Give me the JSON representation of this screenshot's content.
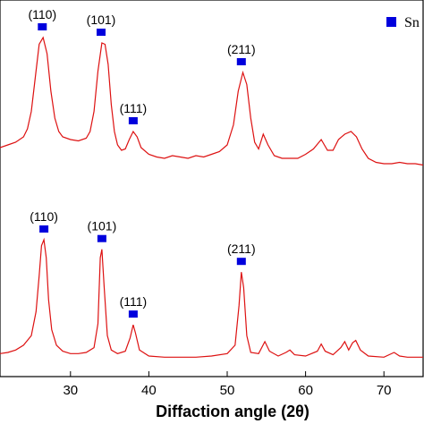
{
  "chart_data": {
    "type": "line",
    "xlabel": "Diffaction angle (2θ)",
    "ylabel": "",
    "xlim": [
      21,
      75
    ],
    "x_ticks": [
      30,
      40,
      50,
      60,
      70
    ],
    "legend": {
      "label": "Sn",
      "marker_color": "#0000dd",
      "placement": "top-right"
    },
    "line_color": "#dd1111",
    "grid": false,
    "series": [
      {
        "points": [
          [
            21,
            0.18
          ],
          [
            22,
            0.2
          ],
          [
            23,
            0.22
          ],
          [
            24,
            0.26
          ],
          [
            24.5,
            0.32
          ],
          [
            25,
            0.45
          ],
          [
            25.5,
            0.7
          ],
          [
            26,
            0.95
          ],
          [
            26.5,
            1
          ],
          [
            27,
            0.88
          ],
          [
            27.5,
            0.6
          ],
          [
            28,
            0.4
          ],
          [
            28.5,
            0.3
          ],
          [
            29,
            0.26
          ],
          [
            30,
            0.24
          ],
          [
            31,
            0.23
          ],
          [
            32,
            0.25
          ],
          [
            32.5,
            0.3
          ],
          [
            33,
            0.45
          ],
          [
            33.5,
            0.75
          ],
          [
            34,
            0.96
          ],
          [
            34.4,
            0.95
          ],
          [
            34.8,
            0.8
          ],
          [
            35.2,
            0.5
          ],
          [
            35.6,
            0.3
          ],
          [
            36,
            0.2
          ],
          [
            36.5,
            0.16
          ],
          [
            37,
            0.17
          ],
          [
            37.5,
            0.24
          ],
          [
            38,
            0.3
          ],
          [
            38.5,
            0.26
          ],
          [
            39,
            0.18
          ],
          [
            40,
            0.13
          ],
          [
            41,
            0.11
          ],
          [
            42,
            0.1
          ],
          [
            43,
            0.12
          ],
          [
            44,
            0.11
          ],
          [
            45,
            0.1
          ],
          [
            46,
            0.12
          ],
          [
            47,
            0.11
          ],
          [
            48,
            0.13
          ],
          [
            49,
            0.15
          ],
          [
            50,
            0.2
          ],
          [
            50.8,
            0.35
          ],
          [
            51.4,
            0.6
          ],
          [
            52,
            0.74
          ],
          [
            52.5,
            0.65
          ],
          [
            53,
            0.4
          ],
          [
            53.5,
            0.22
          ],
          [
            54,
            0.17
          ],
          [
            54.6,
            0.28
          ],
          [
            55.2,
            0.2
          ],
          [
            56,
            0.12
          ],
          [
            57,
            0.1
          ],
          [
            58,
            0.1
          ],
          [
            59,
            0.1
          ],
          [
            60,
            0.13
          ],
          [
            61,
            0.17
          ],
          [
            62,
            0.24
          ],
          [
            62.8,
            0.16
          ],
          [
            63.5,
            0.16
          ],
          [
            64.2,
            0.24
          ],
          [
            65,
            0.28
          ],
          [
            65.8,
            0.3
          ],
          [
            66.5,
            0.26
          ],
          [
            67.2,
            0.17
          ],
          [
            68,
            0.1
          ],
          [
            69,
            0.07
          ],
          [
            70,
            0.06
          ],
          [
            71,
            0.06
          ],
          [
            72,
            0.07
          ],
          [
            73,
            0.06
          ],
          [
            74,
            0.06
          ],
          [
            75,
            0.05
          ]
        ],
        "peaks": [
          {
            "label": "(110)",
            "x": 26.4
          },
          {
            "label": "(101)",
            "x": 33.9
          },
          {
            "label": "(111)",
            "x": 38.0
          },
          {
            "label": "(211)",
            "x": 51.8
          }
        ]
      },
      {
        "points": [
          [
            21,
            0.05
          ],
          [
            22,
            0.06
          ],
          [
            23,
            0.08
          ],
          [
            24,
            0.12
          ],
          [
            25,
            0.2
          ],
          [
            25.6,
            0.4
          ],
          [
            26,
            0.7
          ],
          [
            26.3,
            0.95
          ],
          [
            26.6,
            1
          ],
          [
            26.9,
            0.85
          ],
          [
            27.2,
            0.5
          ],
          [
            27.6,
            0.25
          ],
          [
            28.2,
            0.12
          ],
          [
            29,
            0.07
          ],
          [
            30,
            0.05
          ],
          [
            31,
            0.05
          ],
          [
            32,
            0.06
          ],
          [
            33,
            0.1
          ],
          [
            33.5,
            0.3
          ],
          [
            33.8,
            0.85
          ],
          [
            34,
            0.92
          ],
          [
            34.3,
            0.6
          ],
          [
            34.7,
            0.2
          ],
          [
            35.2,
            0.08
          ],
          [
            36,
            0.05
          ],
          [
            37,
            0.07
          ],
          [
            37.6,
            0.18
          ],
          [
            38,
            0.29
          ],
          [
            38.3,
            0.22
          ],
          [
            38.8,
            0.08
          ],
          [
            40,
            0.03
          ],
          [
            42,
            0.02
          ],
          [
            44,
            0.02
          ],
          [
            46,
            0.02
          ],
          [
            48,
            0.03
          ],
          [
            50,
            0.05
          ],
          [
            51,
            0.12
          ],
          [
            51.5,
            0.45
          ],
          [
            51.8,
            0.73
          ],
          [
            52.1,
            0.6
          ],
          [
            52.5,
            0.2
          ],
          [
            53,
            0.06
          ],
          [
            54,
            0.05
          ],
          [
            54.8,
            0.15
          ],
          [
            55.4,
            0.07
          ],
          [
            56.5,
            0.03
          ],
          [
            57.5,
            0.06
          ],
          [
            58,
            0.08
          ],
          [
            58.6,
            0.04
          ],
          [
            60,
            0.03
          ],
          [
            61.5,
            0.07
          ],
          [
            62,
            0.13
          ],
          [
            62.5,
            0.07
          ],
          [
            63.5,
            0.04
          ],
          [
            64.5,
            0.1
          ],
          [
            65,
            0.15
          ],
          [
            65.5,
            0.08
          ],
          [
            66,
            0.14
          ],
          [
            66.4,
            0.16
          ],
          [
            67,
            0.08
          ],
          [
            68,
            0.03
          ],
          [
            70,
            0.02
          ],
          [
            71.3,
            0.06
          ],
          [
            72,
            0.03
          ],
          [
            73,
            0.02
          ],
          [
            75,
            0.02
          ]
        ],
        "peaks": [
          {
            "label": "(110)",
            "x": 26.6
          },
          {
            "label": "(101)",
            "x": 34.0
          },
          {
            "label": "(111)",
            "x": 38.0
          },
          {
            "label": "(211)",
            "x": 51.8
          }
        ]
      }
    ]
  }
}
